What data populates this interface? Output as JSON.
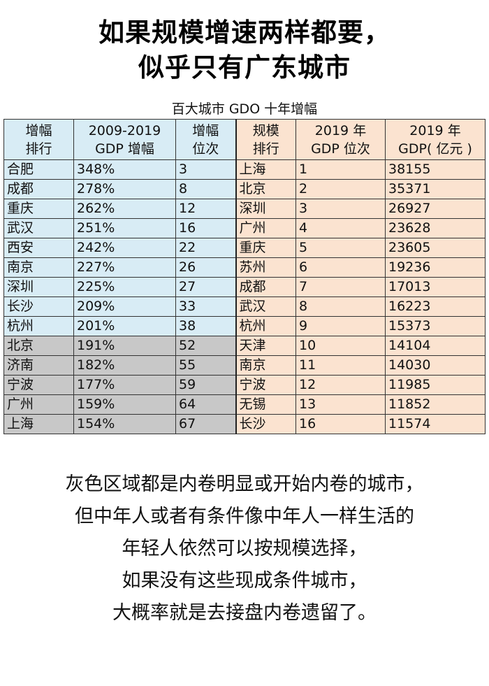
{
  "heading": {
    "line1": "如果规模增速两样都要，",
    "line2": "似乎只有广东城市"
  },
  "table": {
    "caption": "百大城市 GDO 十年增幅",
    "colors": {
      "growth_bg": "#d8ecf5",
      "involuted_bg": "#c8c8c8",
      "scale_bg": "#fbe3d0"
    },
    "headers": {
      "growth_rank": [
        "增幅",
        "排行"
      ],
      "growth": [
        "2009-2019",
        "GDP 增幅"
      ],
      "growth_pos": [
        "增幅",
        "位次"
      ],
      "scale_rank": [
        "规模",
        "排行"
      ],
      "gdp_pos": [
        "2019 年",
        "GDP 位次"
      ],
      "gdp_value": [
        "2019 年",
        "GDP( 亿元 )"
      ]
    },
    "rows": [
      {
        "city_a": "合肥",
        "growth": "348%",
        "growth_pos": "3",
        "city_b": "上海",
        "gdp_pos": "1",
        "gdp": "38155",
        "gray": false
      },
      {
        "city_a": "成都",
        "growth": "278%",
        "growth_pos": "8",
        "city_b": "北京",
        "gdp_pos": "2",
        "gdp": "35371",
        "gray": false
      },
      {
        "city_a": "重庆",
        "growth": "262%",
        "growth_pos": "12",
        "city_b": "深圳",
        "gdp_pos": "3",
        "gdp": "26927",
        "gray": false
      },
      {
        "city_a": "武汉",
        "growth": "251%",
        "growth_pos": "16",
        "city_b": "广州",
        "gdp_pos": "4",
        "gdp": "23628",
        "gray": false
      },
      {
        "city_a": "西安",
        "growth": "242%",
        "growth_pos": "22",
        "city_b": "重庆",
        "gdp_pos": "5",
        "gdp": "23605",
        "gray": false
      },
      {
        "city_a": "南京",
        "growth": "227%",
        "growth_pos": "26",
        "city_b": "苏州",
        "gdp_pos": "6",
        "gdp": "19236",
        "gray": false
      },
      {
        "city_a": "深圳",
        "growth": "225%",
        "growth_pos": "27",
        "city_b": "成都",
        "gdp_pos": "7",
        "gdp": "17013",
        "gray": false
      },
      {
        "city_a": "长沙",
        "growth": "209%",
        "growth_pos": "33",
        "city_b": "武汉",
        "gdp_pos": "8",
        "gdp": "16223",
        "gray": false
      },
      {
        "city_a": "杭州",
        "growth": "201%",
        "growth_pos": "38",
        "city_b": "杭州",
        "gdp_pos": "9",
        "gdp": "15373",
        "gray": false
      },
      {
        "city_a": "北京",
        "growth": "191%",
        "growth_pos": "52",
        "city_b": "天津",
        "gdp_pos": "10",
        "gdp": "14104",
        "gray": true
      },
      {
        "city_a": "济南",
        "growth": "182%",
        "growth_pos": "55",
        "city_b": "南京",
        "gdp_pos": "11",
        "gdp": "14030",
        "gray": true
      },
      {
        "city_a": "宁波",
        "growth": "177%",
        "growth_pos": "59",
        "city_b": "宁波",
        "gdp_pos": "12",
        "gdp": "11985",
        "gray": true
      },
      {
        "city_a": "广州",
        "growth": "159%",
        "growth_pos": "64",
        "city_b": "无锡",
        "gdp_pos": "13",
        "gdp": "11852",
        "gray": true
      },
      {
        "city_a": "上海",
        "growth": "154%",
        "growth_pos": "67",
        "city_b": "长沙",
        "gdp_pos": "16",
        "gdp": "11574",
        "gray": true
      }
    ]
  },
  "paragraph": [
    "灰色区域都是内卷明显或开始内卷的城市，",
    "但中年人或者有条件像中年人一样生活的",
    "年轻人依然可以按规模选择，",
    "如果没有这些现成条件城市，",
    "大概率就是去接盘内卷遗留了。"
  ]
}
